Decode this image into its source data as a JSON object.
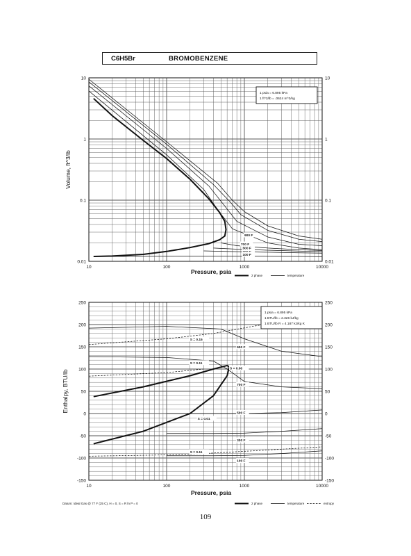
{
  "header": {
    "formula": "C6H5Br",
    "name": "BROMOBENZENE"
  },
  "page_number": "109",
  "chart_data": [
    {
      "type": "line",
      "xscale": "log",
      "yscale": "log",
      "xlim": [
        10,
        10000
      ],
      "ylim": [
        0.01,
        10
      ],
      "xlabel": "Pressure,  psia",
      "ylabel": "Volume, ft^3/lb",
      "x_ticks": [
        "10",
        "100",
        "1000",
        "10000"
      ],
      "y_ticks": [
        "0.01",
        "0.1",
        "1",
        "10"
      ],
      "grid": true,
      "conversion_box": [
        "1 psia = 6.895 kPa",
        "1 ft^3/lb = .0624 m^3/kg"
      ],
      "legend": [
        "2 phase",
        "temperature"
      ],
      "series": [
        {
          "role": "2 phase",
          "x": [
            11.5,
            20,
            50,
            100,
            200,
            350,
            480,
            560,
            580,
            560,
            480,
            350,
            200,
            100,
            50,
            20,
            11.5
          ],
          "y": [
            4.6,
            2.4,
            0.95,
            0.48,
            0.22,
            0.105,
            0.063,
            0.045,
            0.033,
            0.026,
            0.0225,
            0.0195,
            0.0168,
            0.0145,
            0.013,
            0.0122,
            0.012
          ]
        },
        {
          "role": "temperature",
          "x": [
            10,
            100,
            450,
            700,
            1000,
            2000,
            5000,
            10000
          ],
          "y": [
            9.5,
            0.9,
            0.19,
            0.1,
            0.065,
            0.038,
            0.026,
            0.023
          ]
        },
        {
          "role": "temperature",
          "x": [
            10,
            100,
            400,
            650,
            900,
            2000,
            5000,
            10000
          ],
          "y": [
            8.6,
            0.82,
            0.18,
            0.095,
            0.058,
            0.032,
            0.023,
            0.021
          ]
        },
        {
          "role": "temperature",
          "x": [
            10,
            100,
            350,
            560,
            800,
            2000,
            5000,
            10000
          ],
          "y": [
            7.4,
            0.7,
            0.17,
            0.08,
            0.045,
            0.025,
            0.019,
            0.018
          ]
        },
        {
          "role": "temperature",
          "x": [
            10,
            100,
            300,
            460,
            700,
            2000,
            5000,
            10000
          ],
          "y": [
            6.1,
            0.55,
            0.15,
            0.068,
            0.034,
            0.02,
            0.0165,
            0.0155
          ]
        },
        {
          "role": "temperature",
          "x": [
            500,
            800,
            2000,
            5000,
            10000
          ],
          "y": [
            0.02,
            0.018,
            0.0165,
            0.0155,
            0.015
          ]
        },
        {
          "role": "temperature",
          "x": [
            400,
            800,
            2000,
            5000,
            10000
          ],
          "y": [
            0.0165,
            0.0158,
            0.0152,
            0.0147,
            0.0144
          ]
        },
        {
          "role": "temperature",
          "x": [
            300,
            800,
            2000,
            5000,
            10000
          ],
          "y": [
            0.0148,
            0.0144,
            0.0141,
            0.0138,
            0.0136
          ]
        },
        {
          "role": "temperature",
          "x": [
            11.5,
            800,
            2000,
            5000,
            10000
          ],
          "y": [
            0.012,
            0.0122,
            0.0121,
            0.012,
            0.0119
          ]
        }
      ],
      "curve_labels": [
        {
          "text": "900 F",
          "x": 1000,
          "y": 0.026
        },
        {
          "text": "700 F",
          "x": 900,
          "y": 0.0185
        },
        {
          "text": "500 F",
          "x": 950,
          "y": 0.016
        },
        {
          "text": "300 F",
          "x": 950,
          "y": 0.0138
        },
        {
          "text": "100 F",
          "x": 950,
          "y": 0.0125
        }
      ]
    },
    {
      "type": "line",
      "xscale": "log",
      "yscale": "linear",
      "xlim": [
        10,
        10000
      ],
      "ylim": [
        -150,
        250
      ],
      "xlabel": "Pressure,  psia",
      "ylabel": "Enthalpy, BTU/lb",
      "x_ticks": [
        "10",
        "100",
        "1000",
        "10000"
      ],
      "y_ticks": [
        "250",
        "200",
        "150",
        "100",
        "50",
        "0",
        "-50",
        "-100",
        "-150"
      ],
      "grid": true,
      "conversion_box": [
        "1 psia = 6.895 kPa",
        "1 BTU/lb = 2.326 kJ/kg",
        "1 BTU/lb R = 4.187 kJ/kg K"
      ],
      "footnote": "Datum: Ideal Gas @ 77 F (25 C), H = 0, S = R ln P = 0",
      "legend": [
        "2 phase",
        "temperature",
        "entropy"
      ],
      "series": [
        {
          "role": "2 phase",
          "x": [
            11.5,
            50,
            200,
            400,
            600,
            640,
            600,
            400,
            200,
            50,
            11.5
          ],
          "y": [
            38,
            60,
            85,
            100,
            108,
            105,
            85,
            40,
            0,
            -40,
            -68
          ]
        },
        {
          "role": "temperature",
          "x": [
            10,
            100,
            500,
            1000,
            3000,
            10000
          ],
          "y": [
            192,
            196,
            190,
            168,
            140,
            128
          ]
        },
        {
          "role": "temperature",
          "x": [
            10,
            100,
            400,
            600,
            1000,
            3000,
            10000
          ],
          "y": [
            128,
            126,
            118,
            100,
            72,
            60,
            56
          ]
        },
        {
          "role": "temperature",
          "x": [
            100,
            400,
            1000,
            3000,
            10000
          ],
          "y": [
            0,
            0,
            0,
            2,
            8
          ]
        },
        {
          "role": "temperature",
          "x": [
            100,
            400,
            1000,
            3000,
            10000
          ],
          "y": [
            -45,
            -45,
            -44,
            -40,
            -34
          ]
        },
        {
          "role": "temperature",
          "x": [
            100,
            400,
            1000,
            3000,
            10000
          ],
          "y": [
            -95,
            -95,
            -94,
            -90,
            -84
          ]
        },
        {
          "role": "entropy",
          "x": [
            10,
            100,
            400,
            2000,
            10000
          ],
          "y": [
            155,
            168,
            180,
            202,
            225
          ]
        },
        {
          "role": "entropy",
          "x": [
            10,
            100,
            300
          ],
          "y": [
            84,
            92,
            100
          ]
        },
        {
          "role": "entropy",
          "x": [
            10,
            100,
            300,
            1000,
            10000
          ],
          "y": [
            -96,
            -93,
            -90,
            -85,
            -75
          ]
        }
      ],
      "curve_labels": [
        {
          "text": "S = 0.15",
          "x": 200,
          "y": 165
        },
        {
          "text": "S = 0.11",
          "x": 200,
          "y": 112
        },
        {
          "text": "S = 0.06",
          "x": 650,
          "y": 100
        },
        {
          "text": "S = 0.01",
          "x": 250,
          "y": -13
        },
        {
          "text": "S = 0.11",
          "x": 200,
          "y": -88
        },
        {
          "text": "900 F",
          "x": 800,
          "y": 148
        },
        {
          "text": "700 F",
          "x": 800,
          "y": 63
        },
        {
          "text": "500 F",
          "x": 800,
          "y": 0
        },
        {
          "text": "300 F",
          "x": 800,
          "y": -62
        },
        {
          "text": "100 F",
          "x": 800,
          "y": -108
        }
      ]
    }
  ]
}
